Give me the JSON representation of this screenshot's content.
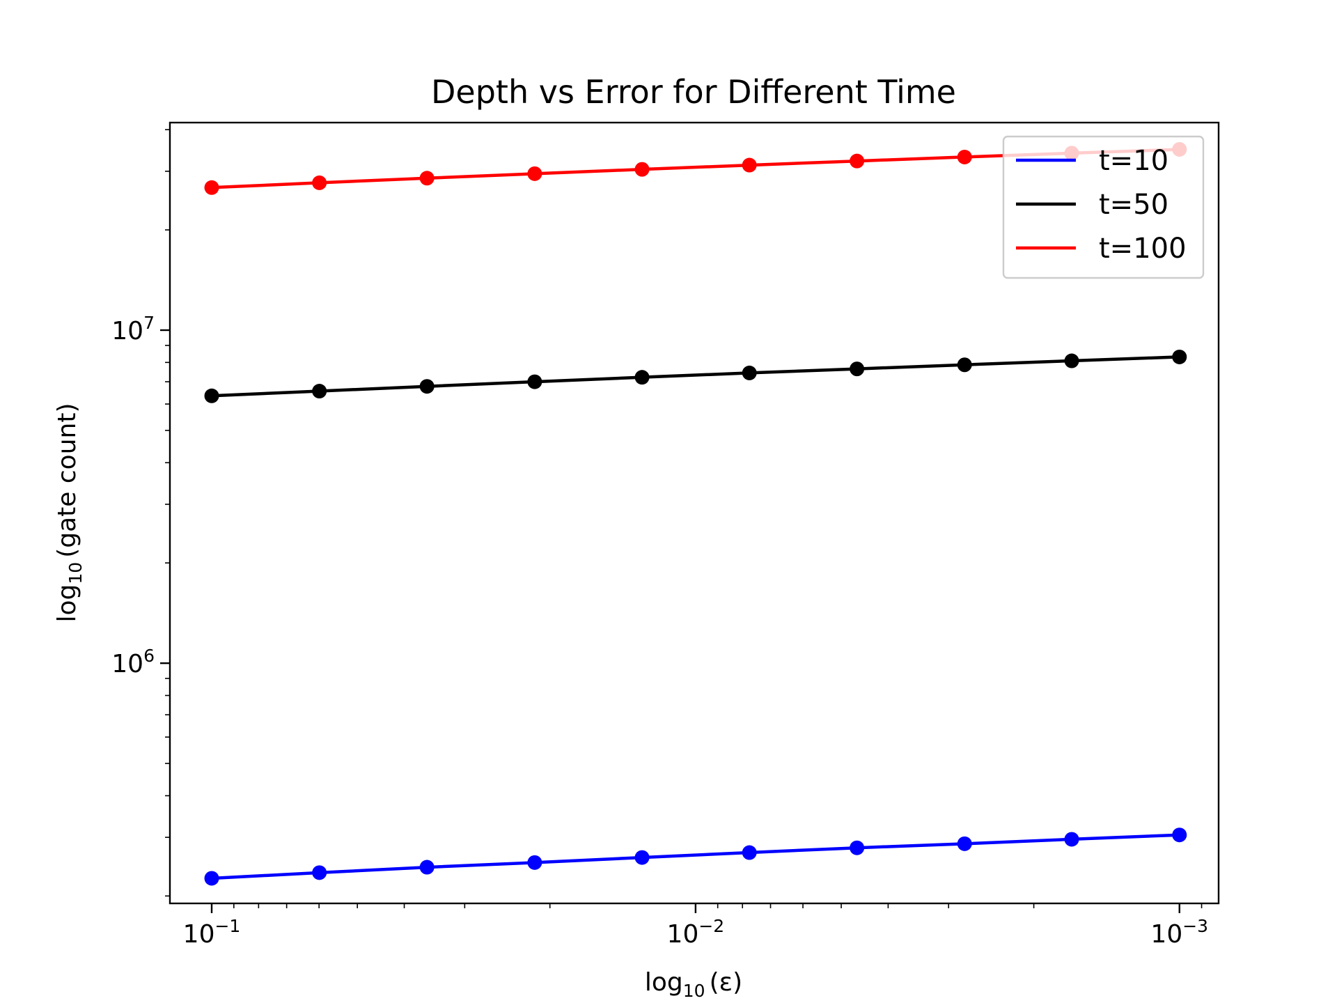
{
  "chart_data": {
    "type": "line",
    "title": "Depth vs Error for Different Time",
    "xlabel": {
      "base": "log",
      "sub": "10",
      "arg": "(ε)"
    },
    "ylabel": {
      "base": "log",
      "sub": "10",
      "arg": "(gate count)"
    },
    "x_scale": "log",
    "x_reversed": true,
    "y_scale": "log",
    "xlim": [
      0.122,
      0.00083
    ],
    "ylim": [
      190000,
      42000000
    ],
    "grid": false,
    "legend_position": "top-right",
    "x_ticks": [
      {
        "value": 0.1,
        "base": "10",
        "exp": "−1"
      },
      {
        "value": 0.01,
        "base": "10",
        "exp": "−2"
      },
      {
        "value": 0.001,
        "base": "10",
        "exp": "−3"
      }
    ],
    "y_ticks": [
      {
        "value": 1000000,
        "base": "10",
        "exp": "6"
      },
      {
        "value": 10000000,
        "base": "10",
        "exp": "7"
      }
    ],
    "x": [
      0.1,
      0.0599,
      0.0359,
      0.0215,
      0.0129,
      0.00774,
      0.00464,
      0.00278,
      0.00167,
      0.001
    ],
    "series": [
      {
        "name": "t=10",
        "color": "#0000ff",
        "values": [
          226000,
          235000,
          244000,
          252000,
          261000,
          270000,
          279000,
          287000,
          296000,
          305000
        ]
      },
      {
        "name": "t=50",
        "color": "#000000",
        "values": [
          6350000,
          6560000,
          6780000,
          7000000,
          7220000,
          7440000,
          7650000,
          7870000,
          8090000,
          8310000
        ]
      },
      {
        "name": "t=100",
        "color": "#ff0000",
        "values": [
          26800000,
          27700000,
          28600000,
          29500000,
          30400000,
          31300000,
          32200000,
          33100000,
          34000000,
          34900000
        ]
      }
    ]
  }
}
